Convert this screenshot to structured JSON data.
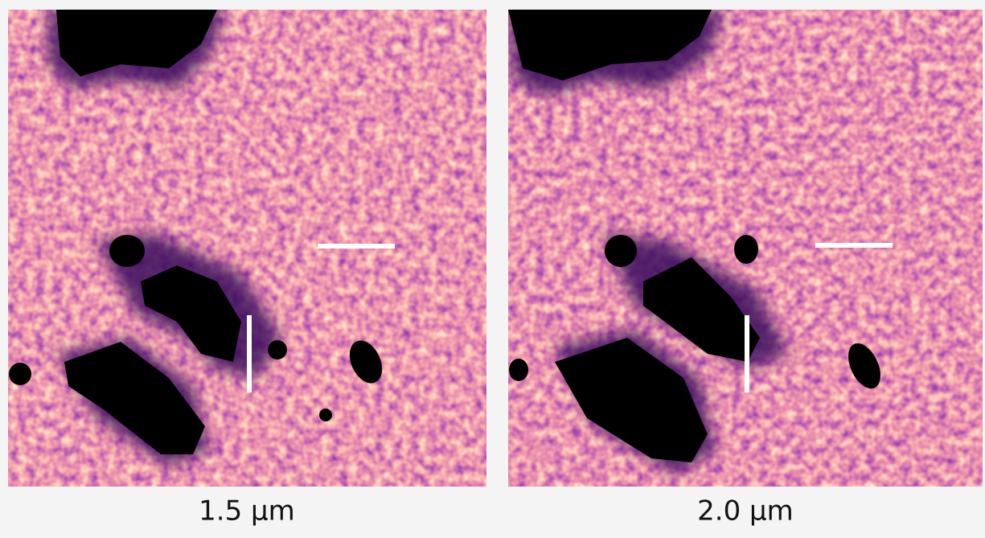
{
  "panels": [
    {
      "label": "1.5 μm"
    },
    {
      "label": "2.0 μm"
    }
  ]
}
